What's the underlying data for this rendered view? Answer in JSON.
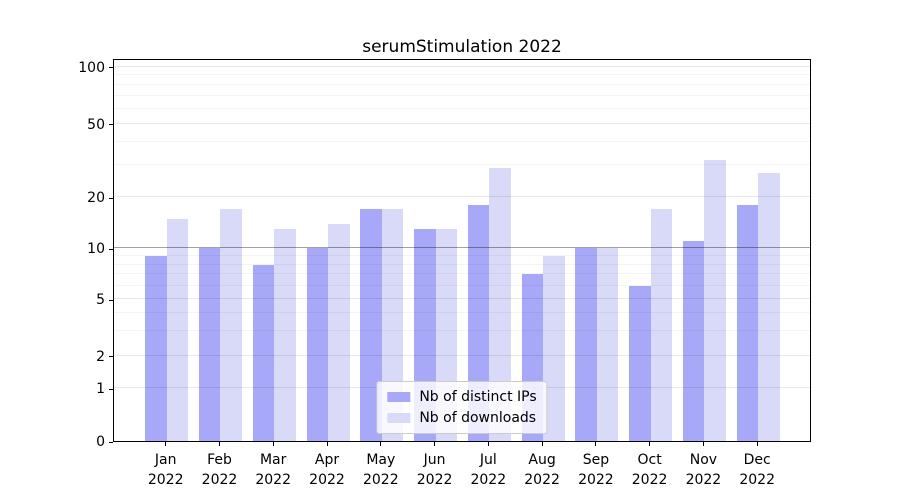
{
  "title": "serumStimulation 2022",
  "year": "2022",
  "colors": {
    "distinct_ips": "#a8a8f8",
    "downloads": "#d9d9f8",
    "axis": "#000000",
    "grid_major": "rgba(0,0,0,0.09)",
    "grid_minor": "rgba(0,0,0,0.045)",
    "grid_emphasis": "rgba(0,0,0,0.30)",
    "legend_border": "#cccccc",
    "background": "#ffffff"
  },
  "chart_data": {
    "type": "bar",
    "title": "serumStimulation 2022",
    "categories": [
      "Jan 2022",
      "Feb 2022",
      "Mar 2022",
      "Apr 2022",
      "May 2022",
      "Jun 2022",
      "Jul 2022",
      "Aug 2022",
      "Sep 2022",
      "Oct 2022",
      "Nov 2022",
      "Dec 2022"
    ],
    "months": [
      "Jan",
      "Feb",
      "Mar",
      "Apr",
      "May",
      "Jun",
      "Jul",
      "Aug",
      "Sep",
      "Oct",
      "Nov",
      "Dec"
    ],
    "series": [
      {
        "name": "Nb of distinct IPs",
        "color_key": "distinct_ips",
        "values": [
          9,
          10,
          8,
          10,
          17,
          13,
          18,
          7,
          10,
          6,
          11,
          18
        ]
      },
      {
        "name": "Nb of downloads",
        "color_key": "downloads",
        "values": [
          15,
          17,
          13,
          14,
          17,
          13,
          29,
          9,
          10,
          17,
          32,
          27
        ]
      }
    ],
    "xlabel": "",
    "ylabel": "",
    "y_axis": {
      "scale": "symlog",
      "major_ticks": [
        0,
        1,
        2,
        5,
        10,
        20,
        50,
        100
      ],
      "minor_ticks": [
        3,
        4,
        6,
        7,
        8,
        9,
        30,
        40,
        60,
        70,
        80,
        90
      ],
      "emphasis_line": 10,
      "ylim": [
        0,
        120
      ]
    },
    "grid": true,
    "legend_position": "lower center"
  }
}
